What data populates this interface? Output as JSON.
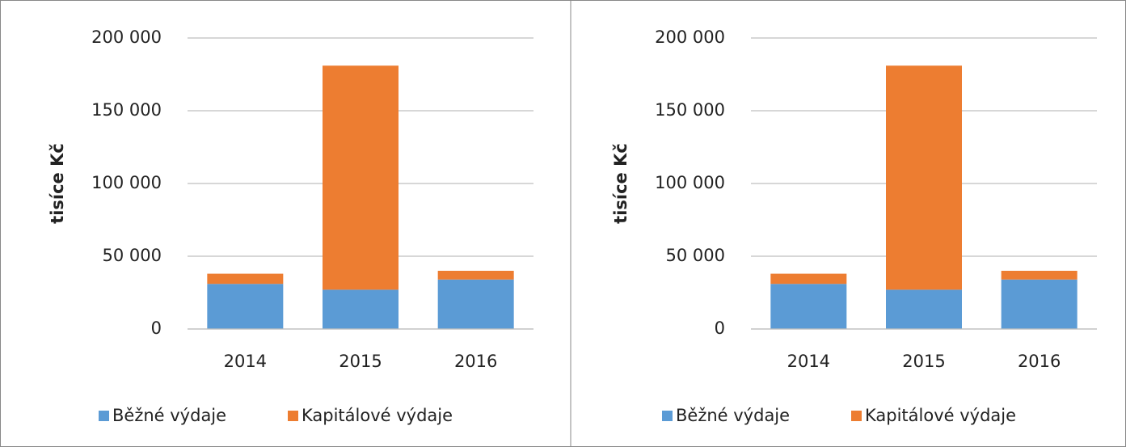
{
  "chart_data": [
    {
      "type": "stacked_bar",
      "y_label": "tisíce Kč",
      "categories": [
        "2014",
        "2015",
        "2016"
      ],
      "series": [
        {
          "name": "Běžné výdaje",
          "color": "#5b9bd5",
          "values": [
            31000,
            27000,
            34000
          ]
        },
        {
          "name": "Kapitálové výdaje",
          "color": "#ed7d31",
          "values": [
            7000,
            154000,
            6000
          ]
        }
      ],
      "ylim": [
        0,
        200000
      ],
      "yticks": [
        0,
        {
          "value": 50000,
          "label": "50 000"
        },
        {
          "value": 100000,
          "label": "100 000"
        },
        {
          "value": 150000,
          "label": "150 000"
        },
        {
          "value": 200000,
          "label": "200 000"
        }
      ],
      "grid": true,
      "legend": "bottom"
    },
    {
      "type": "stacked_bar",
      "y_label": "tisíce Kč",
      "categories": [
        "2014",
        "2015",
        "2016"
      ],
      "series": [
        {
          "name": "Běžné výdaje",
          "color": "#5b9bd5",
          "values": [
            31000,
            27000,
            34000
          ]
        },
        {
          "name": "Kapitálové výdaje",
          "color": "#ed7d31",
          "values": [
            7000,
            154000,
            6000
          ]
        }
      ],
      "ylim": [
        0,
        200000
      ],
      "yticks": [
        0,
        {
          "value": 50000,
          "label": "50 000"
        },
        {
          "value": 100000,
          "label": "100 000"
        },
        {
          "value": 150000,
          "label": "150 000"
        },
        {
          "value": 200000,
          "label": "200 000"
        }
      ],
      "grid": true,
      "legend": "bottom"
    }
  ]
}
